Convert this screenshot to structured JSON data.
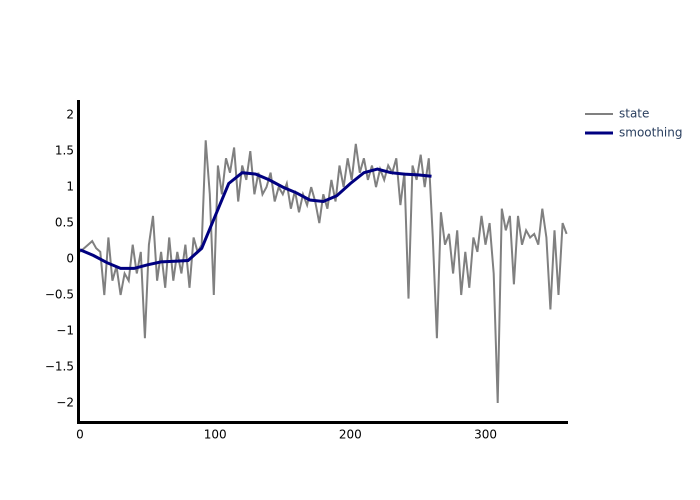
{
  "chart_data": {
    "type": "line",
    "xlim": [
      0,
      361
    ],
    "ylim": [
      -2.25,
      2.21
    ],
    "xticks": [
      0,
      100,
      200,
      300
    ],
    "yticks": [
      {
        "value": -2,
        "label": "−2"
      },
      {
        "value": -1.5,
        "label": "−1.5"
      },
      {
        "value": -1,
        "label": "−1"
      },
      {
        "value": -0.5,
        "label": "−0.5"
      },
      0,
      0.5,
      1,
      1.5,
      2
    ],
    "legend": "top-right",
    "series": [
      {
        "name": "state",
        "color": "#808080",
        "x": [
          0,
          3,
          6,
          9,
          12,
          15,
          18,
          21,
          24,
          27,
          30,
          33,
          36,
          39,
          42,
          45,
          48,
          51,
          54,
          57,
          60,
          63,
          66,
          69,
          72,
          75,
          78,
          81,
          84,
          87,
          90,
          93,
          96,
          99,
          102,
          105,
          108,
          111,
          114,
          117,
          120,
          123,
          126,
          129,
          132,
          135,
          138,
          141,
          144,
          147,
          150,
          153,
          156,
          159,
          162,
          165,
          168,
          171,
          174,
          177,
          180,
          183,
          186,
          189,
          192,
          195,
          198,
          201,
          204,
          207,
          210,
          213,
          216,
          219,
          222,
          225,
          228,
          231,
          234,
          237,
          240,
          243,
          246,
          249,
          252,
          255,
          258,
          261,
          264,
          267,
          270,
          273,
          276,
          279,
          282,
          285,
          288,
          291,
          294,
          297,
          300,
          303,
          306,
          309,
          312,
          315,
          318,
          321,
          324,
          327,
          330,
          333,
          336,
          339,
          342,
          345,
          348,
          351,
          354,
          357,
          360
        ],
        "values": [
          0.1,
          0.15,
          0.2,
          0.25,
          0.15,
          0.1,
          -0.5,
          0.3,
          -0.3,
          -0.1,
          -0.5,
          -0.2,
          -0.3,
          0.2,
          -0.2,
          0.1,
          -1.1,
          0.2,
          0.6,
          -0.3,
          0.1,
          -0.4,
          0.3,
          -0.3,
          0.1,
          -0.2,
          0.2,
          -0.4,
          0.3,
          0.1,
          0.2,
          1.65,
          0.9,
          -0.5,
          1.3,
          0.9,
          1.4,
          1.2,
          1.55,
          0.8,
          1.3,
          1.1,
          1.5,
          0.9,
          1.2,
          0.9,
          1.0,
          1.2,
          0.8,
          1.0,
          0.9,
          1.05,
          0.7,
          0.95,
          0.65,
          0.9,
          0.75,
          1.0,
          0.8,
          0.5,
          0.9,
          0.7,
          1.1,
          0.8,
          1.3,
          1.0,
          1.4,
          1.1,
          1.6,
          1.2,
          1.4,
          1.1,
          1.3,
          1.0,
          1.25,
          1.1,
          1.3,
          1.2,
          1.4,
          0.75,
          1.2,
          -0.55,
          1.3,
          1.1,
          1.45,
          1.0,
          1.4,
          0.3,
          -1.1,
          0.65,
          0.2,
          0.35,
          -0.2,
          0.4,
          -0.5,
          0.1,
          -0.4,
          0.3,
          0.1,
          0.6,
          0.2,
          0.5,
          -0.2,
          -2.0,
          0.7,
          0.4,
          0.6,
          -0.35,
          0.6,
          0.2,
          0.4,
          0.3,
          0.35,
          0.2,
          0.7,
          0.3,
          -0.7,
          0.4,
          -0.5,
          0.5,
          0.35
        ]
      },
      {
        "name": "smoothing",
        "color": "#000080",
        "x": [
          0,
          10,
          20,
          30,
          40,
          50,
          60,
          70,
          80,
          90,
          100,
          110,
          120,
          130,
          140,
          150,
          160,
          170,
          180,
          190,
          200,
          210,
          220,
          230,
          240,
          250,
          260
        ],
        "values": [
          0.13,
          0.05,
          -0.05,
          -0.13,
          -0.13,
          -0.08,
          -0.04,
          -0.03,
          -0.02,
          0.15,
          0.6,
          1.05,
          1.2,
          1.18,
          1.1,
          1.0,
          0.92,
          0.82,
          0.8,
          0.88,
          1.05,
          1.2,
          1.25,
          1.2,
          1.18,
          1.17,
          1.15
        ]
      }
    ]
  }
}
